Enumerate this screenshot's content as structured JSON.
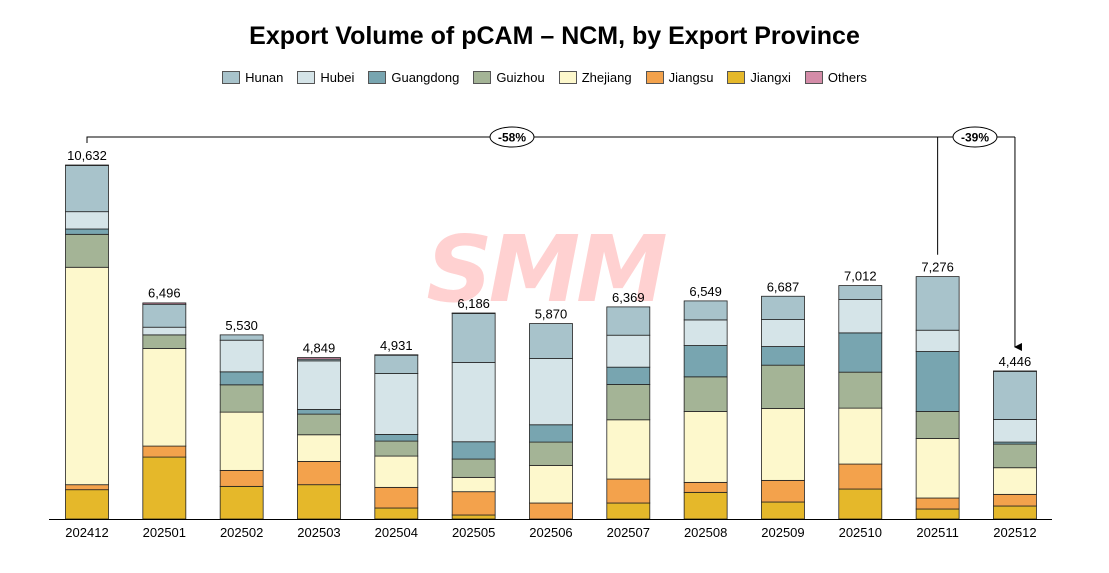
{
  "chart_data": {
    "type": "bar",
    "stacked": true,
    "title": "Export Volume of pCAM – NCM, by Export Province",
    "xlabel": "",
    "ylabel": "",
    "grid": false,
    "legend_position": "top",
    "categories": [
      "202412",
      "202501",
      "202502",
      "202503",
      "202504",
      "202505",
      "202506",
      "202507",
      "202508",
      "202509",
      "202510",
      "202511",
      "202512"
    ],
    "totals": [
      10632,
      6496,
      5530,
      4849,
      4931,
      6186,
      5870,
      6369,
      6549,
      6687,
      7012,
      7276,
      4446
    ],
    "total_labels": [
      "10,632",
      "6,496",
      "5,530",
      "4,849",
      "4,931",
      "6,186",
      "5,870",
      "6,369",
      "6,549",
      "6,687",
      "7,012",
      "7,276",
      "4,446"
    ],
    "series": [
      {
        "name": "Jiangxi",
        "color": "#e5b82a",
        "values": [
          880,
          1860,
          980,
          1030,
          330,
          120,
          0,
          480,
          800,
          510,
          900,
          300,
          390
        ]
      },
      {
        "name": "Jiangsu",
        "color": "#f3a24c",
        "values": [
          150,
          330,
          480,
          700,
          620,
          700,
          480,
          720,
          300,
          650,
          750,
          330,
          350
        ]
      },
      {
        "name": "Zhejiang",
        "color": "#fdf8cc",
        "values": [
          6530,
          2930,
          1750,
          800,
          940,
          430,
          1130,
          1780,
          2130,
          2160,
          1680,
          1790,
          800
        ]
      },
      {
        "name": "Guizhou",
        "color": "#a4b496",
        "values": [
          990,
          410,
          820,
          620,
          450,
          550,
          700,
          1060,
          1040,
          1300,
          1080,
          810,
          710
        ]
      },
      {
        "name": "Guangdong",
        "color": "#78a5b0",
        "values": [
          160,
          0,
          390,
          140,
          200,
          520,
          520,
          520,
          940,
          560,
          1180,
          1800,
          60
        ]
      },
      {
        "name": "Hubei",
        "color": "#d5e4e8",
        "values": [
          520,
          230,
          950,
          1460,
          1830,
          2380,
          1990,
          960,
          770,
          810,
          1000,
          640,
          680
        ]
      },
      {
        "name": "Hunan",
        "color": "#a8c3cb",
        "values": [
          1390,
          690,
          160,
          50,
          560,
          1480,
          1050,
          850,
          570,
          700,
          420,
          1610,
          1450
        ]
      },
      {
        "name": "Others",
        "color": "#d48ca8",
        "values": [
          12,
          40,
          0,
          49,
          1,
          6,
          0,
          0,
          0,
          0,
          0,
          0,
          6
        ]
      }
    ],
    "legend_order": [
      "Hunan",
      "Hubei",
      "Guangdong",
      "Guizhou",
      "Zhejiang",
      "Jiangsu",
      "Jiangxi",
      "Others"
    ],
    "annotations": [
      {
        "from": "202412",
        "to": "202512",
        "label": "-58%"
      },
      {
        "from": "202511",
        "to": "202512",
        "label": "-39%"
      }
    ]
  },
  "watermark": "SMM"
}
